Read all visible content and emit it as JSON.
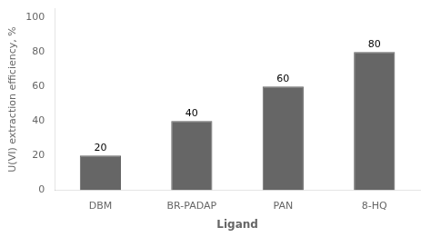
{
  "chart_data": {
    "type": "bar",
    "categories": [
      "DBM",
      "BR-PADAP",
      "PAN",
      "8-HQ"
    ],
    "values": [
      20,
      40,
      60,
      80
    ],
    "color": "#666666",
    "xlabel": "Ligand",
    "ylabel": "U(VI) extraction efficiency, %",
    "ylim": [
      0,
      105
    ],
    "yticks": [
      0,
      20,
      40,
      60,
      80,
      100
    ],
    "grid": false,
    "data_labels": true
  }
}
